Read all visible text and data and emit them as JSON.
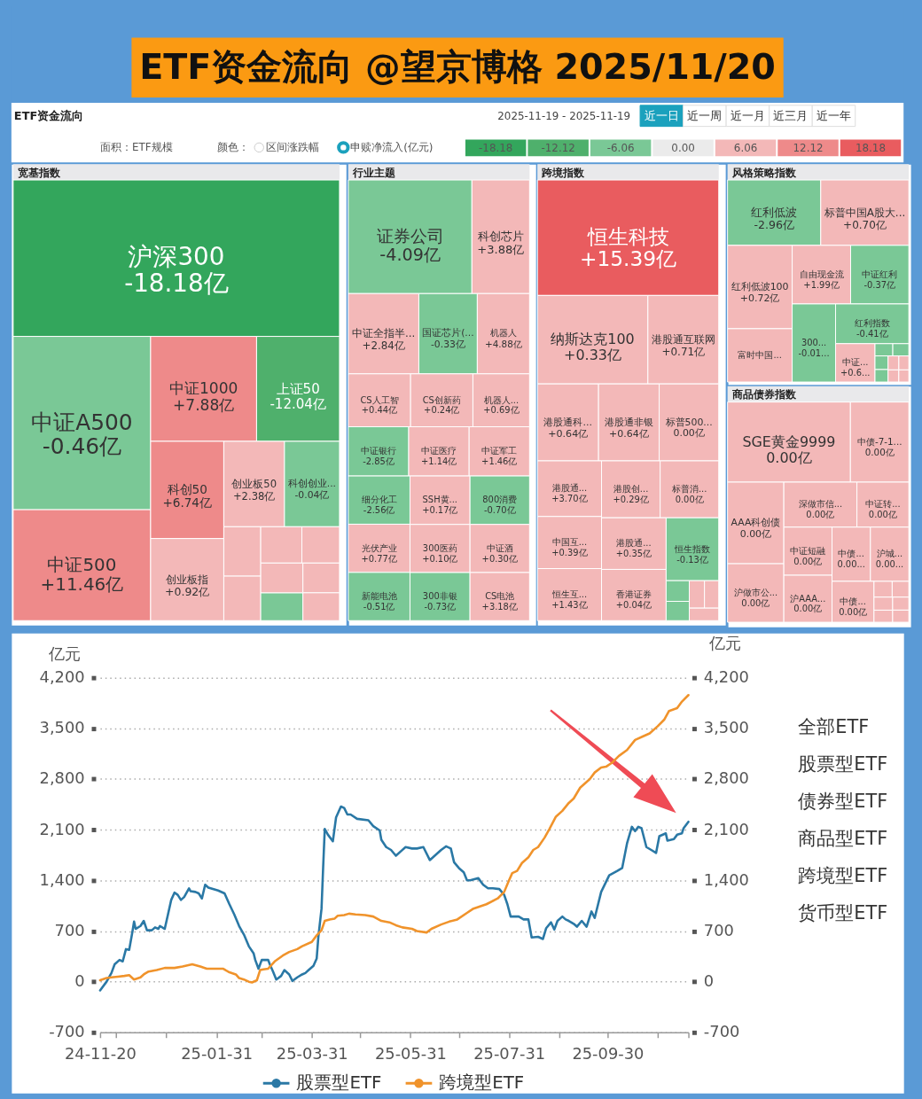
{
  "chart_data": [
    {
      "type": "heatmap",
      "title": "ETF资金流向 @望京博格 2025/11/20",
      "annotations": [
        "ETF资金流向",
        "2025-11-19 - 2025-11-19",
        "近一日",
        "近一周",
        "近一月",
        "近三月",
        "近一年",
        "面积：ETF规模",
        "颜色：",
        "区间涨跌幅",
        "申赎净流入(亿元)"
      ],
      "categories": [
        null,
        null,
        null,
        null,
        null,
        null,
        null
      ],
      "y_categories": [
        null
      ],
      "cells": [
        [
          -18.18,
          -12.12,
          -6.06,
          0,
          6.06,
          12.12,
          18.18
        ]
      ],
      "cell_labels": [
        [
          "-18.18",
          "-12.12",
          "-6.06",
          "0.00",
          "6.06",
          "12.12",
          "18.18"
        ]
      ],
      "colors": [
        "#33a65c",
        "#4fb06c",
        "#7ac896",
        "#ebebeb",
        "#f3b8b8",
        "#ee8a8a",
        "#e95c5f"
      ]
    },
    {
      "type": "other",
      "title": "宽基指数",
      "categories": [
        "沪深300",
        "中证A500",
        "中证500",
        "中证1000",
        "上证50",
        "科创50",
        "创业板指",
        "创业板50",
        "科创创业...",
        null,
        null,
        null,
        null,
        null,
        null,
        null,
        null
      ],
      "values": [
        -18.18,
        -0.46,
        11.46,
        7.88,
        -12.04,
        6.74,
        0.92,
        2.38,
        -0.04,
        null,
        null,
        null,
        null,
        null,
        null,
        null,
        null
      ],
      "value_labels": [
        "-18.18亿",
        "-0.46亿",
        "+11.46亿",
        "+7.88亿",
        "-12.04亿",
        "+6.74亿",
        "+0.92亿",
        "+2.38亿",
        "-0.04亿",
        null,
        null,
        null,
        null,
        null,
        null,
        null,
        null
      ],
      "colors": [
        null,
        null,
        null,
        null,
        null,
        null,
        null,
        null,
        null,
        "#f3b8b8",
        "#f3b8b8",
        "#f3b8b8",
        "#f3b8b8",
        "#f3b8b8",
        "#7ac896",
        "#f3b8b8",
        "#f3b8b8"
      ]
    },
    {
      "type": "other",
      "title": "行业主题",
      "categories": [
        "证券公司",
        "科创芯片",
        "机器人",
        "国证芯片(...",
        "CS人工智",
        "中证银行",
        "中证医疗",
        "中证军工",
        "细分化工",
        "CS创新药",
        "中证全指半...",
        "中证酒",
        "800消费",
        "CS电池",
        "机器人...",
        "SSH黄...",
        "光伏产业",
        "新能电池",
        "300医药",
        "300非银"
      ],
      "values": [
        -4.09,
        3.88,
        4.88,
        -0.33,
        0.44,
        -2.85,
        1.14,
        1.46,
        -2.56,
        0.24,
        2.84,
        0.3,
        -0.7,
        3.18,
        0.69,
        0.17,
        0.77,
        -0.51,
        0.1,
        -0.73
      ],
      "value_labels": [
        "-4.09亿",
        "+3.88亿",
        "+4.88亿",
        "-0.33亿",
        "+0.44亿",
        "-2.85亿",
        "+1.14亿",
        "+1.46亿",
        "-2.56亿",
        "+0.24亿",
        "+2.84亿",
        "+0.30亿",
        "-0.70亿",
        "+3.18亿",
        "+0.69亿",
        "+0.17亿",
        "+0.77亿",
        "-0.51亿",
        "+0.10亿",
        "-0.73亿"
      ]
    },
    {
      "type": "other",
      "title": "跨境指数",
      "categories": [
        "恒生科技",
        "纳斯达克100",
        "港股通互联网",
        "港股通科...",
        "港股通...",
        "中国互...",
        "恒生互...",
        "香港证券",
        "港股通非银",
        "港股创...",
        "标普500...",
        "标普消...",
        "港股通...",
        "恒生指数",
        null,
        null,
        null,
        null,
        null
      ],
      "values": [
        15.39,
        0.33,
        0.71,
        0.64,
        3.7,
        0.39,
        1.43,
        0.04,
        0.64,
        0.29,
        0,
        0,
        0.35,
        -0.13,
        null,
        null,
        null,
        null,
        null
      ],
      "value_labels": [
        "+15.39亿",
        "+0.33亿",
        "+0.71亿",
        "+0.64亿",
        "+3.70亿",
        "+0.39亿",
        "+1.43亿",
        "+0.04亿",
        "+0.64亿",
        "+0.29亿",
        "0.00亿",
        "0.00亿",
        "+0.35亿",
        "-0.13亿",
        null,
        null,
        null,
        null,
        null
      ],
      "colors": [
        null,
        null,
        null,
        null,
        null,
        null,
        null,
        null,
        null,
        null,
        null,
        null,
        null,
        null,
        "#7ac896",
        "#7ac896",
        "#f3b8b8",
        "#f3b8b8",
        "#f3b8b8"
      ]
    },
    {
      "type": "other",
      "title": "风格策略指数",
      "categories": [
        "红利低波",
        "中证红利",
        "红利指数",
        "红利低波100",
        "自由现金流",
        "标普中国A股大...",
        "中证...",
        "富时中国...",
        "300...",
        null,
        null,
        null,
        null,
        null,
        null,
        null,
        null
      ],
      "values": [
        -2.96,
        -0.37,
        -0.41,
        0.72,
        1.99,
        0.7,
        null,
        null,
        null,
        null,
        null,
        null,
        null,
        null,
        null,
        null,
        null
      ],
      "value_labels": [
        "-2.96亿",
        "-0.37亿",
        "-0.41亿",
        "+0.72亿",
        "+1.99亿",
        "+0.70亿",
        "+0.6...",
        null,
        "-0.01...",
        null,
        null,
        null,
        null,
        null,
        null,
        null,
        null
      ],
      "colors": [
        null,
        null,
        null,
        null,
        null,
        null,
        "#f3b8b8",
        "#f3b8b8",
        "#7ac896",
        "#7ac896",
        "#7ac896",
        "#7ac896",
        "#7ac896",
        "#f3b8b8",
        "#f3b8b8",
        "#f3b8b8",
        "#f3b8b8"
      ]
    },
    {
      "type": "other",
      "title": "商品债券指数",
      "categories": [
        "SGE黄金9999",
        "AAA科创债",
        "沪做市公...",
        "沪AAA...",
        "深做市信...",
        "中债-7-1...",
        "中证短融",
        "中证转...",
        "中债...",
        "中债...",
        "沪城...",
        null,
        null,
        null,
        null,
        null,
        null
      ],
      "values": [
        0,
        0,
        0,
        0,
        0,
        0,
        0,
        0,
        0,
        null,
        null,
        null,
        null,
        null,
        null,
        null,
        null
      ],
      "value_labels": [
        "0.00亿",
        "0.00亿",
        "0.00亿",
        "0.00亿",
        "0.00亿",
        "0.00亿",
        "0.00亿",
        "0.00亿",
        "0.00亿",
        "0.00...",
        "0.00...",
        null,
        null,
        null,
        null,
        null,
        null
      ],
      "colors": [
        null,
        null,
        null,
        null,
        null,
        null,
        null,
        null,
        null,
        "#f3b8b8",
        "#f3b8b8",
        "#f3b8b8",
        "#f3b8b8",
        "#f3b8b8",
        "#f3b8b8",
        "#f3b8b8",
        "#f3b8b8"
      ]
    },
    {
      "type": "line",
      "ylabel": "亿元",
      "y2label": "亿元",
      "xlim": [
        "2024-11-20",
        "2025-11-19"
      ],
      "xticks": [
        {
          "value": "2024-11-20",
          "label": "24-11-20"
        },
        {
          "value": "2024-11-30",
          "label": null
        },
        {
          "value": "2024-12-31",
          "label": null
        },
        {
          "value": "2025-01-31",
          "label": "25-01-31"
        },
        {
          "value": "2025-02-28",
          "label": null
        },
        {
          "value": "2025-03-31",
          "label": "25-03-31"
        },
        {
          "value": "2025-04-30",
          "label": null
        },
        {
          "value": "2025-05-31",
          "label": "25-05-31"
        },
        {
          "value": "2025-06-30",
          "label": null
        },
        {
          "value": "2025-07-31",
          "label": "25-07-31"
        },
        {
          "value": "2025-08-31",
          "label": null
        },
        {
          "value": "2025-09-30",
          "label": "25-09-30"
        },
        {
          "value": "2025-10-31",
          "label": null
        },
        {
          "value": "2025-11-19",
          "label": null
        }
      ],
      "ylim": [
        -700,
        4200
      ],
      "yticks": [
        -700,
        0,
        700,
        {
          "value": 1400,
          "label": "1,400"
        },
        {
          "value": 2100,
          "label": "2,100"
        },
        {
          "value": 2800,
          "label": "2,800"
        },
        {
          "value": 3500,
          "label": "3,500"
        },
        {
          "value": 4200,
          "label": "4,200"
        }
      ],
      "y2lim": [
        -700,
        4200
      ],
      "y2ticks": [
        -700,
        0,
        700,
        {
          "value": 1400,
          "label": "1,400"
        },
        {
          "value": 2100,
          "label": "2,100"
        },
        {
          "value": 2800,
          "label": "2,800"
        },
        {
          "value": 3500,
          "label": "3,500"
        },
        {
          "value": 4200,
          "label": "4,200"
        }
      ],
      "grid": "y",
      "legend": "bottom",
      "annotations": [
        "全部ETF",
        "股票型ETF",
        "债券型ETF",
        "商品型ETF",
        "跨境型ETF",
        "货币型ETF"
      ],
      "series": [
        {
          "name": "股票型ETF",
          "color": "#2a78a5",
          "x": [
            "2024-11-20",
            "2024-11-24",
            "2024-11-27",
            "2024-11-29",
            "2024-12-02",
            "2024-12-04",
            "2024-12-06",
            "2024-12-08",
            "2024-12-10",
            "2024-12-11",
            "2024-12-12",
            "2024-12-15",
            "2024-12-17",
            "2024-12-19",
            "2024-12-22",
            "2024-12-24",
            "2024-12-26",
            "2024-12-27",
            "2024-12-30",
            "2025-01-01",
            "2025-01-03",
            "2025-01-05",
            "2025-01-07",
            "2025-01-09",
            "2025-01-11",
            "2025-01-14",
            "2025-01-15",
            "2025-01-18",
            "2025-01-20",
            "2025-01-22",
            "2025-01-24",
            "2025-01-26",
            "2025-02-01",
            "2025-02-05",
            "2025-02-08",
            "2025-02-11",
            "2025-02-14",
            "2025-02-17",
            "2025-02-20",
            "2025-02-23",
            "2025-02-24",
            "2025-02-26",
            "2025-02-28",
            "2025-03-04",
            "2025-03-05",
            "2025-03-07",
            "2025-03-09",
            "2025-03-12",
            "2025-03-14",
            "2025-03-17",
            "2025-03-19",
            "2025-03-22",
            "2025-03-25",
            "2025-03-27",
            "2025-03-29",
            "2025-04-01",
            "2025-04-03",
            "2025-04-04",
            "2025-04-06",
            "2025-04-07",
            "2025-04-08",
            "2025-04-10",
            "2025-04-13",
            "2025-04-15",
            "2025-04-18",
            "2025-04-20",
            "2025-04-22",
            "2025-04-24",
            "2025-04-28",
            "2025-05-05",
            "2025-05-08",
            "2025-05-12",
            "2025-05-13",
            "2025-05-16",
            "2025-05-19",
            "2025-05-22",
            "2025-05-25",
            "2025-05-28",
            "2025-06-01",
            "2025-06-04",
            "2025-06-08",
            "2025-06-12",
            "2025-06-17",
            "2025-06-19",
            "2025-06-22",
            "2025-06-25",
            "2025-06-27",
            "2025-06-30",
            "2025-07-03",
            "2025-07-05",
            "2025-07-07",
            "2025-07-12",
            "2025-07-15",
            "2025-07-18",
            "2025-07-21",
            "2025-07-25",
            "2025-07-28",
            "2025-07-30",
            "2025-08-01",
            "2025-08-04",
            "2025-08-06",
            "2025-08-09",
            "2025-08-12",
            "2025-08-14",
            "2025-08-18",
            "2025-08-21",
            "2025-08-23",
            "2025-08-26",
            "2025-08-28",
            "2025-08-30",
            "2025-09-02",
            "2025-09-04",
            "2025-09-06",
            "2025-09-09",
            "2025-09-11",
            "2025-09-14",
            "2025-09-17",
            "2025-09-20",
            "2025-09-22",
            "2025-09-26",
            "2025-10-01",
            "2025-10-06",
            "2025-10-09",
            "2025-10-12",
            "2025-10-15",
            "2025-10-17",
            "2025-10-19",
            "2025-10-21",
            "2025-10-24",
            "2025-10-27",
            "2025-10-30",
            "2025-11-01",
            "2025-11-05",
            "2025-11-06",
            "2025-11-10",
            "2025-11-12",
            "2025-11-15",
            "2025-11-16",
            "2025-11-19"
          ],
          "values": [
            -120,
            0,
            120,
            240,
            300,
            280,
            450,
            440,
            690,
            830,
            730,
            770,
            840,
            710,
            710,
            750,
            730,
            770,
            730,
            930,
            1130,
            1230,
            1200,
            1130,
            1170,
            1290,
            1250,
            1240,
            1220,
            1150,
            1340,
            1300,
            1260,
            1220,
            1070,
            930,
            770,
            650,
            490,
            390,
            300,
            180,
            300,
            300,
            240,
            140,
            30,
            80,
            160,
            100,
            10,
            60,
            100,
            120,
            160,
            220,
            320,
            610,
            1010,
            1580,
            2110,
            2030,
            1940,
            2270,
            2420,
            2400,
            2310,
            2310,
            2250,
            2230,
            2150,
            2090,
            1960,
            1860,
            1820,
            1740,
            1800,
            1860,
            1840,
            1840,
            1860,
            1680,
            1780,
            1820,
            1870,
            1840,
            1650,
            1570,
            1510,
            1400,
            1400,
            1430,
            1340,
            1290,
            1290,
            1280,
            1200,
            1070,
            900,
            900,
            900,
            860,
            860,
            610,
            620,
            590,
            740,
            820,
            720,
            840,
            900,
            860,
            840,
            800,
            760,
            840,
            760,
            970,
            880,
            1240,
            1470,
            1530,
            1570,
            1910,
            2140,
            2080,
            2140,
            2120,
            1860,
            1820,
            1780,
            2010,
            2050,
            1950,
            1970,
            2030,
            2050,
            2120,
            2210
          ]
        },
        {
          "name": "跨境型ETF",
          "color": "#f0932b",
          "axis": "y2",
          "x": [
            "2024-11-20",
            "2024-11-24",
            "2024-11-27",
            "2024-12-01",
            "2024-12-05",
            "2024-12-08",
            "2024-12-11",
            "2024-12-15",
            "2024-12-17",
            "2024-12-20",
            "2024-12-25",
            "2024-12-30",
            "2025-01-05",
            "2025-01-10",
            "2025-01-16",
            "2025-01-21",
            "2025-01-25",
            "2025-01-30",
            "2025-02-04",
            "2025-02-08",
            "2025-02-12",
            "2025-02-14",
            "2025-02-17",
            "2025-02-20",
            "2025-02-22",
            "2025-02-25",
            "2025-02-27",
            "2025-03-01",
            "2025-03-04",
            "2025-03-08",
            "2025-03-13",
            "2025-03-17",
            "2025-03-22",
            "2025-03-25",
            "2025-03-31",
            "2025-04-03",
            "2025-04-06",
            "2025-04-08",
            "2025-04-11",
            "2025-04-14",
            "2025-04-16",
            "2025-04-20",
            "2025-04-23",
            "2025-04-27",
            "2025-05-03",
            "2025-05-08",
            "2025-05-13",
            "2025-05-18",
            "2025-05-22",
            "2025-05-26",
            "2025-06-01",
            "2025-06-04",
            "2025-06-10",
            "2025-06-13",
            "2025-06-19",
            "2025-06-24",
            "2025-06-29",
            "2025-07-05",
            "2025-07-09",
            "2025-07-17",
            "2025-07-24",
            "2025-07-28",
            "2025-07-31",
            "2025-08-02",
            "2025-08-05",
            "2025-08-08",
            "2025-08-12",
            "2025-08-15",
            "2025-08-18",
            "2025-08-22",
            "2025-08-25",
            "2025-08-29",
            "2025-09-02",
            "2025-09-06",
            "2025-09-09",
            "2025-09-13",
            "2025-09-19",
            "2025-09-22",
            "2025-09-26",
            "2025-09-29",
            "2025-10-03",
            "2025-10-07",
            "2025-10-12",
            "2025-10-17",
            "2025-10-22",
            "2025-10-26",
            "2025-10-31",
            "2025-11-04",
            "2025-11-07",
            "2025-11-12",
            "2025-11-15",
            "2025-11-19"
          ],
          "values": [
            20,
            50,
            60,
            70,
            80,
            90,
            30,
            60,
            100,
            140,
            160,
            190,
            190,
            210,
            240,
            210,
            180,
            180,
            180,
            130,
            100,
            50,
            30,
            0,
            -10,
            20,
            160,
            170,
            180,
            280,
            360,
            410,
            450,
            490,
            550,
            640,
            710,
            840,
            860,
            870,
            910,
            920,
            940,
            930,
            920,
            900,
            840,
            820,
            780,
            750,
            730,
            700,
            680,
            730,
            790,
            830,
            860,
            950,
            1010,
            1070,
            1150,
            1240,
            1400,
            1500,
            1530,
            1640,
            1720,
            1820,
            1860,
            1990,
            2110,
            2280,
            2360,
            2470,
            2530,
            2680,
            2800,
            2890,
            2960,
            2970,
            3030,
            3120,
            3200,
            3340,
            3390,
            3430,
            3530,
            3620,
            3740,
            3780,
            3870,
            3960
          ]
        }
      ]
    }
  ]
}
